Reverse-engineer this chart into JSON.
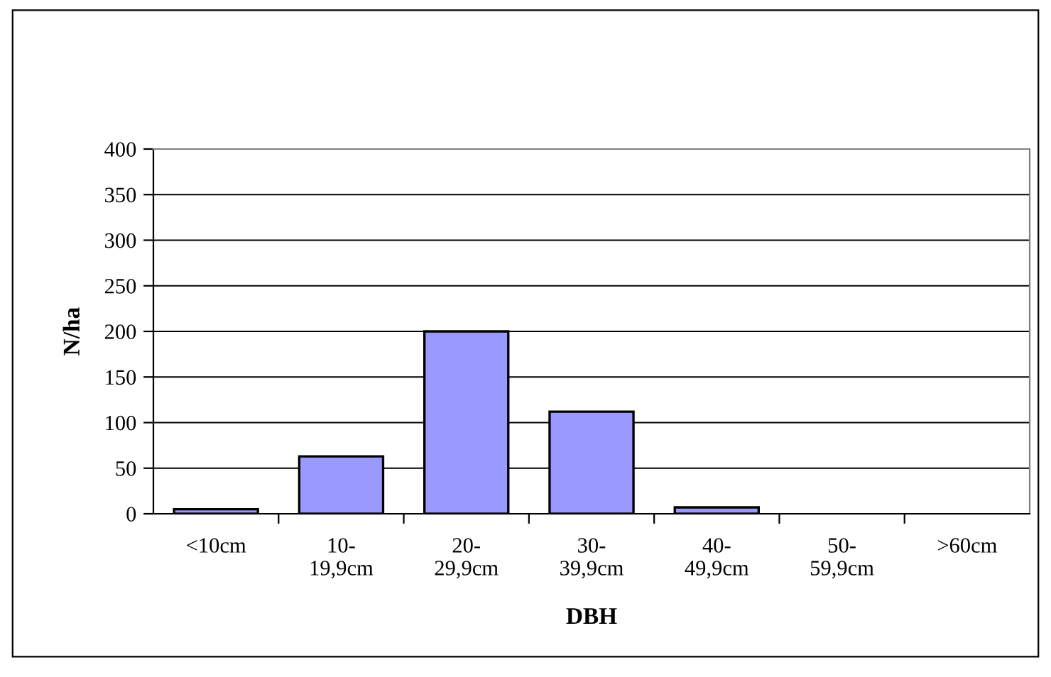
{
  "chart_data": {
    "type": "bar",
    "xlabel": "DBH",
    "ylabel": "N/ha",
    "categories": [
      "<10cm",
      "10-\n19,9cm",
      "20-\n29,9cm",
      "30-\n39,9cm",
      "40-\n49,9cm",
      "50-\n59,9cm",
      ">60cm"
    ],
    "values": [
      5,
      63,
      200,
      112,
      7,
      0,
      0
    ],
    "color": "#9999ff",
    "ylim": [
      0,
      400
    ],
    "yticks": [
      0,
      50,
      100,
      150,
      200,
      250,
      300,
      350,
      400
    ],
    "grid": "y",
    "legend": false
  }
}
